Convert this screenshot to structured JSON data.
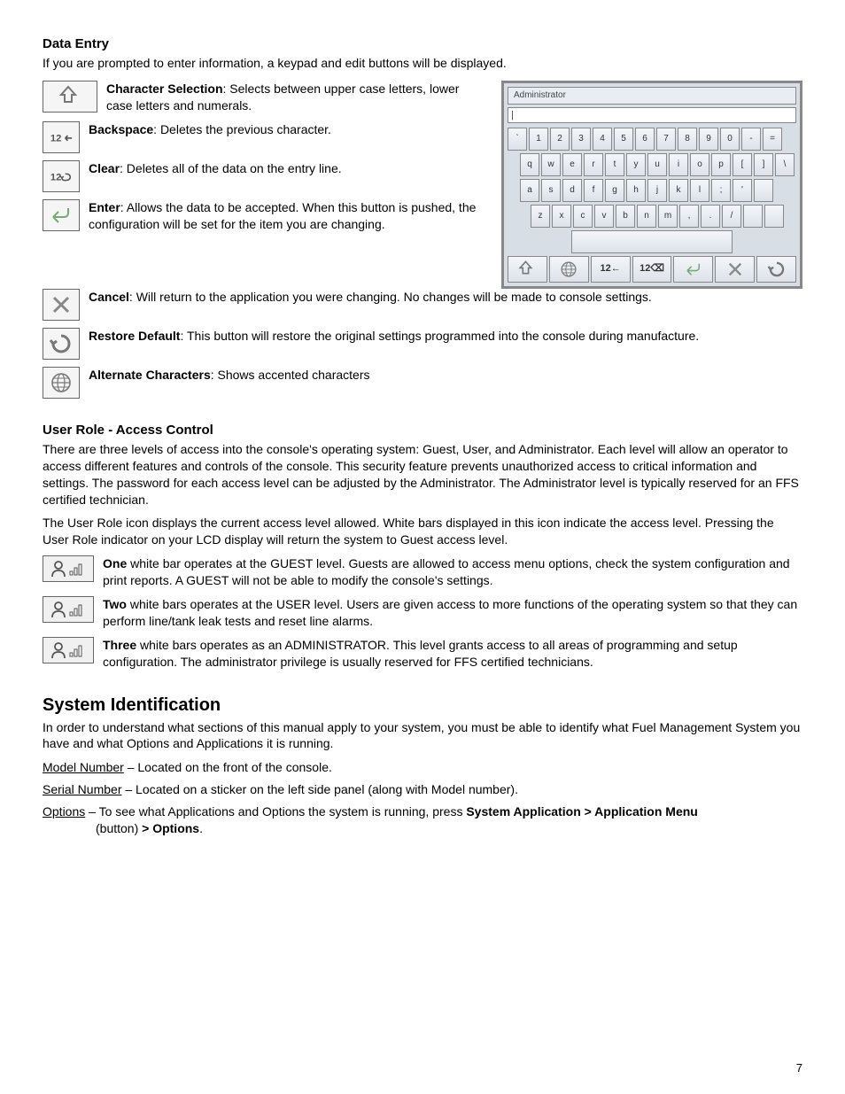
{
  "dataEntry": {
    "heading": "Data Entry",
    "intro": "If you are prompted to enter information, a keypad and edit buttons will be displayed.",
    "items": [
      {
        "label": "Character Selection",
        "text": ": Selects between upper case letters, lower case letters and numerals."
      },
      {
        "label": "Backspace",
        "text": ": Deletes the previous character."
      },
      {
        "label": "Clear",
        "text": ": Deletes all of the data on the entry line."
      },
      {
        "label": "Enter",
        "text": ": Allows the data to be accepted. When this button is pushed, the configuration will be set for the item you are changing."
      },
      {
        "label": "Cancel",
        "text": ": Will return to the application you were changing. No changes will be made to console settings."
      },
      {
        "label": "Restore Default",
        "text": ": This button will restore the original settings programmed into the console during manufacture."
      },
      {
        "label": "Alternate Characters",
        "text": ": Shows accented characters"
      }
    ]
  },
  "keypad": {
    "title": "Administrator",
    "inputValue": "|",
    "rows": [
      [
        "`",
        "1",
        "2",
        "3",
        "4",
        "5",
        "6",
        "7",
        "8",
        "9",
        "0",
        "-",
        "="
      ],
      [
        "q",
        "w",
        "e",
        "r",
        "t",
        "y",
        "u",
        "i",
        "o",
        "p",
        "[",
        "]",
        "\\"
      ],
      [
        "a",
        "s",
        "d",
        "f",
        "g",
        "h",
        "j",
        "k",
        "l",
        ";",
        "'",
        ""
      ],
      [
        "z",
        "x",
        "c",
        "v",
        "b",
        "n",
        "m",
        ",",
        ".",
        "/",
        "",
        ""
      ]
    ],
    "bottomText": {
      "bksp": "12←",
      "clear": "12⌫"
    },
    "leadingSpacer": [
      0,
      1,
      1,
      2
    ]
  },
  "userRole": {
    "heading": "User Role - Access Control",
    "p1": "There are three levels of access into the console's operating system: Guest, User, and Administrator. Each level will allow an operator to access different features and controls of the console. This security feature prevents unauthorized access to critical information and settings. The password for each access level can be adjusted by the Administrator. The Administrator level is typically reserved for an FFS certified technician.",
    "p2": "The User Role icon displays the current access level allowed. White bars displayed in this icon indicate the access level. Pressing the User Role indicator on your LCD display will return the system to Guest access level.",
    "levels": [
      {
        "label": "One",
        "bars": 1,
        "text": " white bar operates at the GUEST level. Guests are allowed to access menu options, check the system configuration and print reports. A GUEST will not be able to modify the console's settings."
      },
      {
        "label": "Two",
        "bars": 2,
        "text": " white bars operates at the USER level. Users are given access to more functions of the operating system so that they can perform line/tank leak tests and reset line alarms."
      },
      {
        "label": "Three",
        "bars": 3,
        "text": " white bars operates as an ADMINISTRATOR. This level grants access to all areas of programming and setup configuration. The administrator privilege is usually reserved for FFS certified technicians."
      }
    ]
  },
  "systemId": {
    "heading": "System Identification",
    "intro": "In order to understand what sections of this manual apply to your system, you must be able to identify what Fuel Management System you have and what Options and Applications it is running.",
    "lines": {
      "model_label": "Model Number",
      "model_text": " – Located on the front of the console.",
      "serial_label": "Serial Number",
      "serial_text": " – Located on a sticker on the left side panel (along with Model number).",
      "options_label": "Options",
      "options_text1": " – To see what Applications and Options the system is running, press ",
      "options_bold1": "System Application > Application Menu",
      "options_text2": " (button) ",
      "options_bold2": "> Options",
      "options_text3": "."
    }
  },
  "pageNumber": "7"
}
